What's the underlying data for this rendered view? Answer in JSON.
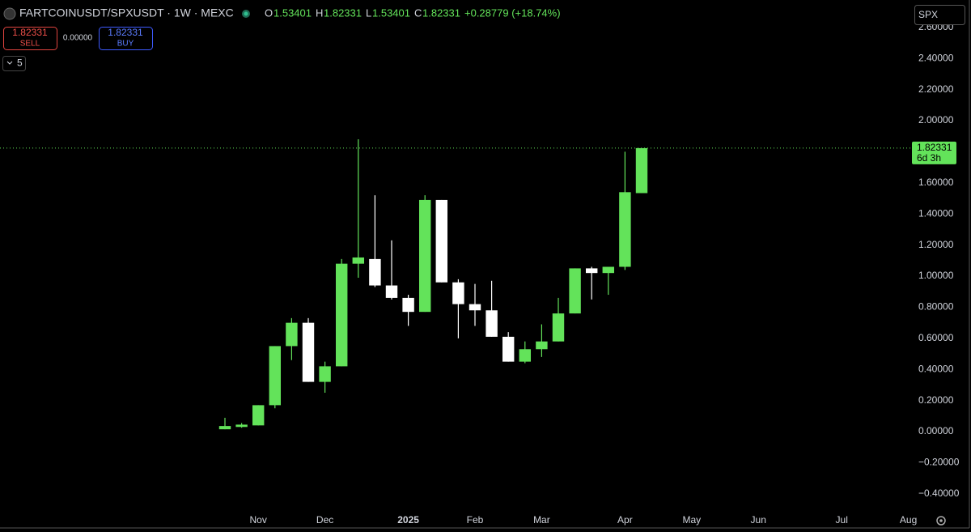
{
  "ui": {
    "symbol": "FARTCOINUSDT/SPXUSDT · 1W · MEXC",
    "ohlc_labels": [
      "O",
      "H",
      "L",
      "C"
    ],
    "change": "+0.28779 (+18.74%)",
    "sell_price": "1.82331",
    "sell": "SELL",
    "spread": "0.00000",
    "buy_price": "1.82331",
    "buy": "BUY",
    "indicators": "5",
    "search": "SPX",
    "countdown": "6d 3h"
  },
  "chart_data": {
    "type": "candlestick",
    "categories": [
      null,
      null,
      "Nov",
      null,
      null,
      null,
      "Dec",
      null,
      null,
      null,
      null,
      "2025",
      null,
      null,
      null,
      "Feb",
      null,
      null,
      null,
      "Mar",
      null,
      null,
      null,
      null,
      "Apr",
      null,
      null,
      null,
      "May",
      null,
      null,
      null,
      "Jun",
      null,
      null,
      null,
      null,
      "Jul",
      null,
      null,
      null,
      "Aug"
    ],
    "open": [
      0.015,
      0.03,
      0.04,
      0.17,
      0.55,
      0.7,
      0.32,
      0.42,
      1.08,
      1.11,
      0.94,
      0.86,
      0.77,
      1.49,
      0.96,
      0.82,
      0.78,
      0.61,
      0.45,
      0.53,
      0.58,
      0.76,
      1.05,
      1.02,
      1.06,
      1.53401,
      null,
      null,
      null,
      null,
      null,
      null,
      null,
      null,
      null,
      null,
      null,
      null,
      null,
      null,
      null,
      null
    ],
    "high": [
      0.089,
      0.055,
      0.17,
      0.55,
      0.73,
      0.73,
      0.45,
      1.11,
      1.88,
      1.52,
      1.23,
      0.88,
      1.52,
      1.49,
      0.98,
      0.95,
      0.97,
      0.64,
      0.58,
      0.69,
      0.86,
      1.05,
      1.06,
      1.06,
      1.8,
      1.82331,
      null,
      null,
      null,
      null,
      null,
      null,
      null,
      null,
      null,
      null,
      null,
      null,
      null,
      null,
      null,
      null
    ],
    "low": [
      0.015,
      0.025,
      0.04,
      0.15,
      0.46,
      0.32,
      0.25,
      0.42,
      0.99,
      0.93,
      0.85,
      0.68,
      0.77,
      0.96,
      0.6,
      0.68,
      0.61,
      0.45,
      0.44,
      0.48,
      0.58,
      0.76,
      0.85,
      0.88,
      1.04,
      1.53401,
      null,
      null,
      null,
      null,
      null,
      null,
      null,
      null,
      null,
      null,
      null,
      null,
      null,
      null,
      null,
      null
    ],
    "close": [
      0.036,
      0.045,
      0.17,
      0.55,
      0.7,
      0.32,
      0.42,
      1.08,
      1.12,
      0.94,
      0.86,
      0.77,
      1.49,
      0.96,
      0.82,
      0.78,
      0.61,
      0.45,
      0.53,
      0.58,
      0.76,
      1.05,
      1.02,
      1.06,
      1.54,
      1.82331,
      null,
      null,
      null,
      null,
      null,
      null,
      null,
      null,
      null,
      null,
      null,
      null,
      null,
      null,
      null,
      null
    ],
    "up_color": "#63e35a",
    "down_color": "#ffffff",
    "ylim": [
      -0.505,
      2.776
    ],
    "yticks": [
      {
        "value": -0.4,
        "label": "−0.40000"
      },
      {
        "value": -0.2,
        "label": "−0.20000"
      },
      {
        "value": 0,
        "label": "0.00000"
      },
      {
        "value": 0.2,
        "label": "0.20000"
      },
      {
        "value": 0.4,
        "label": "0.40000"
      },
      {
        "value": 0.6,
        "label": "0.60000"
      },
      {
        "value": 0.8,
        "label": "0.80000"
      },
      {
        "value": 1.0,
        "label": "1.00000"
      },
      {
        "value": 1.2,
        "label": "1.20000"
      },
      {
        "value": 1.4,
        "label": "1.40000"
      },
      {
        "value": 1.6,
        "label": "1.60000"
      },
      {
        "value": 1.8,
        "label": "1.80000"
      },
      {
        "value": 2.0,
        "label": "2.00000"
      },
      {
        "value": 2.2,
        "label": "2.20000"
      },
      {
        "value": 2.4,
        "label": "2.40000"
      },
      {
        "value": 2.6,
        "label": "2.60000"
      }
    ],
    "grid": false
  }
}
